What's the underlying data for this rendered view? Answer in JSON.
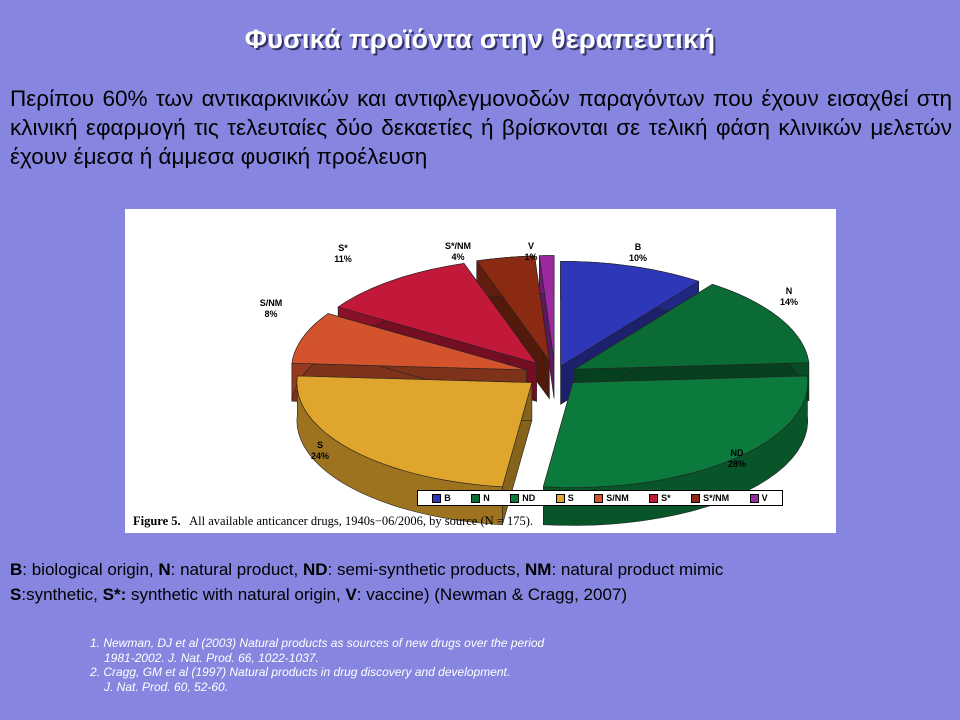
{
  "slide": {
    "title": "Φυσικά προϊόντα στην θεραπευτική",
    "intro": "Περίπου  60% των αντικαρκινικών και αντιφλεγμονοδών παραγόντων που έχουν εισαχθεί στη κλινική εφαρμογή τις τελευταίες δύο δεκαετίες ή βρίσκονται σε τελική φάση κλινικών μελετών έχουν έμεσα ή άμμεσα φυσική προέλευση"
  },
  "chart_data": {
    "type": "pie",
    "title": "",
    "categories": [
      "B",
      "N",
      "ND",
      "S",
      "S/NM",
      "S*",
      "S*/NM",
      "V"
    ],
    "values": [
      10,
      14,
      28,
      24,
      8,
      11,
      4,
      1
    ],
    "value_labels": [
      "10%",
      "14%",
      "28%",
      "24%",
      "8%",
      "11%",
      "4%",
      "1%"
    ],
    "colors": [
      "#2e37b8",
      "#0a6b34",
      "#0c7a3c",
      "#e0a52c",
      "#d2532c",
      "#c2183a",
      "#8a2a12",
      "#9a2aa0"
    ],
    "legend_position": "bottom",
    "style": "3d-exploded",
    "caption_label": "Figure 5.",
    "caption_text": "All available anticancer drugs, 1940s−06/2006, by source (N = 175)."
  },
  "abbreviations": {
    "line1": [
      {
        "key": "B",
        "text": ": biological origin, "
      },
      {
        "key": "N",
        "text": ": natural product, "
      },
      {
        "key": "ND",
        "text": ": semi-synthetic products, "
      },
      {
        "key": "NM",
        "text": ": natural product mimic"
      }
    ],
    "line2": [
      {
        "key": "S",
        "text": ":synthetic,  "
      },
      {
        "key": "S*:",
        "text": " synthetic with natural origin, "
      },
      {
        "key": "V",
        "text": ": vaccine)  (Newman & Cragg, 2007)"
      }
    ]
  },
  "references": [
    {
      "first": "1. Newman, DJ et al (2003) Natural products as sources of new drugs over the period",
      "second": "1981-2002. J. Nat. Prod. 66, 1022-1037."
    },
    {
      "first": "2. Cragg, GM et al (1997) Natural products in drug discovery and development.",
      "second": "J. Nat. Prod. 60, 52-60."
    }
  ]
}
